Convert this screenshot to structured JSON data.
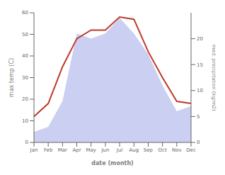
{
  "chart_data": {
    "type": "line",
    "xlabel": "date (month)",
    "ylabel": "max temp (C)",
    "y2label": "med. precipitation (kg/m2)",
    "categories": [
      "Jan",
      "Feb",
      "Mar",
      "Apr",
      "May",
      "Jun",
      "Jul",
      "Aug",
      "Sep",
      "Oct",
      "Nov",
      "Dec"
    ],
    "series": [
      {
        "type": "area",
        "axis": "y2",
        "color": "#c5caf0",
        "values": [
          2,
          3,
          8,
          21,
          20,
          21,
          24,
          21,
          17,
          11,
          6,
          7
        ]
      },
      {
        "type": "line",
        "color": "#c0392b",
        "values": [
          12,
          18,
          35,
          48,
          52,
          52,
          58,
          57,
          42,
          30,
          19,
          18
        ]
      }
    ],
    "ylim": [
      0,
      60
    ],
    "yticks": [
      0,
      10,
      20,
      30,
      40,
      50,
      60
    ],
    "y2lim": [
      0,
      25
    ],
    "y2ticks": [
      0,
      5,
      10,
      15,
      20
    ],
    "grid": false
  }
}
